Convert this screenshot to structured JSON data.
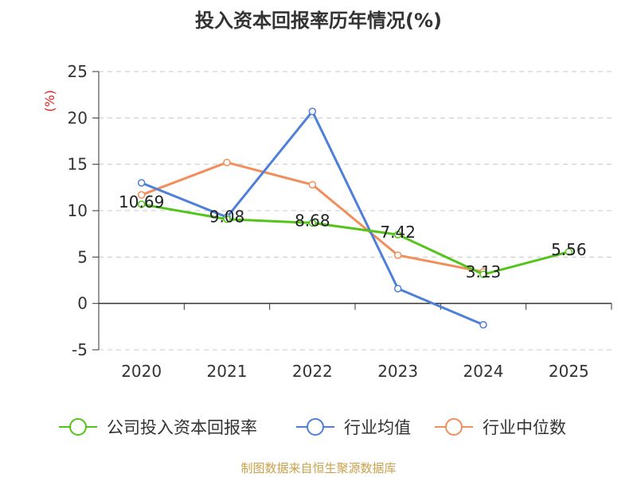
{
  "chart_data": {
    "type": "line",
    "title": "投入资本回报率历年情况(%)",
    "ylabel": "(%)",
    "categories": [
      "2020",
      "2021",
      "2022",
      "2023",
      "2024",
      "2025"
    ],
    "ylim": [
      -5,
      25
    ],
    "yticks": [
      -5,
      0,
      5,
      10,
      15,
      20,
      25
    ],
    "grid": true,
    "legend_position": "bottom",
    "series": [
      {
        "name": "公司投入资本回报率",
        "color": "#52c41a",
        "values": [
          10.69,
          9.08,
          8.68,
          7.42,
          3.13,
          5.56
        ],
        "labels": [
          "10.69",
          "9.08",
          "8.68",
          "7.42",
          "3.13",
          "5.56"
        ]
      },
      {
        "name": "行业均值",
        "color": "#4e7fd9",
        "values": [
          13.0,
          9.3,
          20.7,
          1.6,
          -2.3,
          null
        ]
      },
      {
        "name": "行业中位数",
        "color": "#f28e5b",
        "values": [
          11.7,
          15.2,
          12.8,
          5.2,
          3.4,
          null
        ]
      }
    ]
  },
  "source": "制图数据来自恒生聚源数据库"
}
